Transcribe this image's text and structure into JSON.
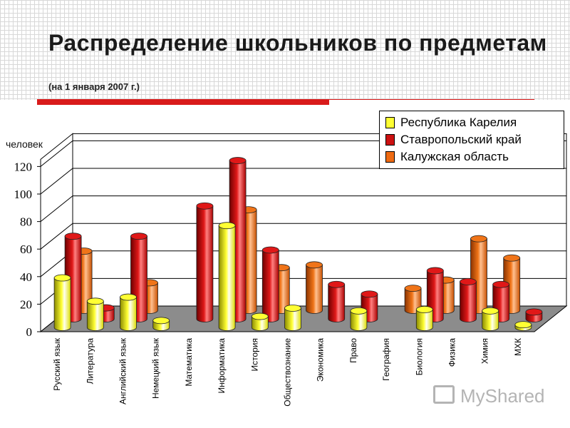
{
  "title": "Распределение школьников по предметам",
  "subtitle": "(на 1 января 2007 г.)",
  "watermark": "MyShared",
  "chart_data": {
    "type": "bar",
    "style": "3d-cylinder",
    "ylabel": "человек",
    "ylim": [
      0,
      120
    ],
    "yticks": [
      0,
      20,
      40,
      60,
      80,
      100,
      120
    ],
    "categories": [
      "Русский язык",
      "Литература",
      "Английский язык",
      "Немецкий язык",
      "Математика",
      "Информатика",
      "История",
      "Обществознание",
      "Экономика",
      "Право",
      "География",
      "Биология",
      "Физика",
      "Химия",
      "МХК"
    ],
    "series": [
      {
        "name": "Республика Карелия",
        "color": "#ffff33",
        "values": [
          36,
          19,
          22,
          5,
          0,
          74,
          8,
          14,
          0,
          12,
          0,
          13,
          0,
          12,
          2
        ]
      },
      {
        "name": "Ставропольский край",
        "color": "#cc1111",
        "values": [
          60,
          8,
          60,
          0,
          82,
          115,
          50,
          0,
          25,
          18,
          0,
          35,
          27,
          25,
          5
        ]
      },
      {
        "name": "Калужская  область",
        "color": "#ee6a12",
        "values": [
          43,
          0,
          20,
          0,
          0,
          73,
          31,
          33,
          0,
          0,
          16,
          22,
          52,
          38,
          0
        ]
      }
    ],
    "legend_position": "top-right"
  }
}
